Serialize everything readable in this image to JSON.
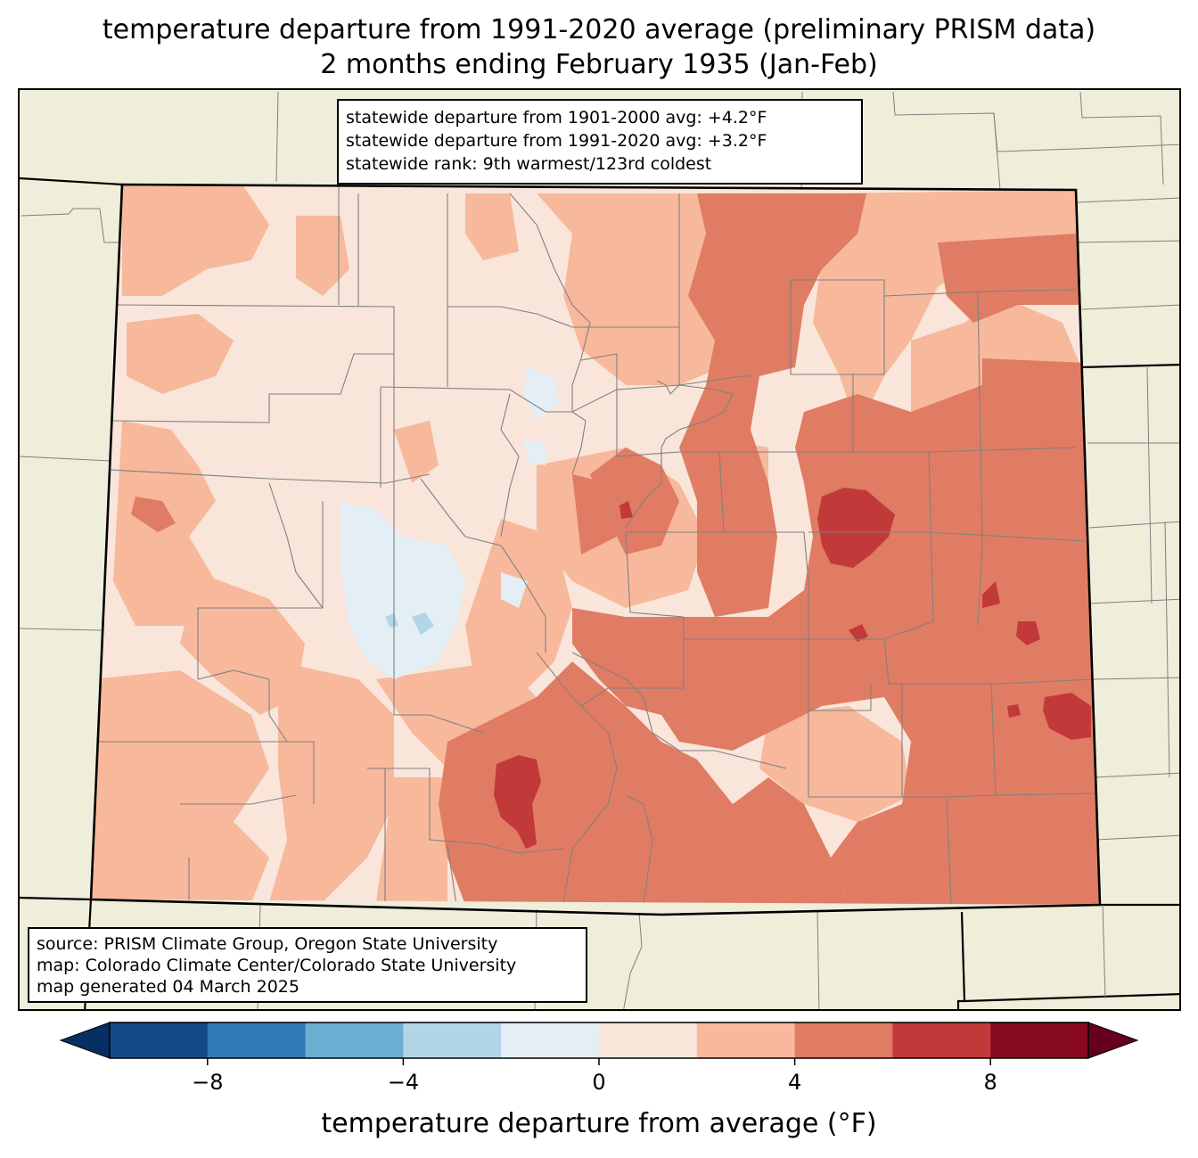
{
  "title": {
    "line1": "temperature departure from 1991-2020 average (preliminary PRISM data)",
    "line2": "2 months ending February 1935 (Jan-Feb)"
  },
  "stats_box": {
    "line1": "statewide departure from 1901-2000 avg: +4.2°F",
    "line2": "statewide departure from 1991-2020 avg: +3.2°F",
    "line3": "statewide rank: 9th warmest/123rd coldest"
  },
  "source_box": {
    "line1": "source: PRISM Climate Group, Oregon State University",
    "line2": "map: Colorado Climate Center/Colorado State University",
    "line3": "map generated 04 March 2025"
  },
  "colorbar": {
    "label": "temperature departure from average (°F)",
    "bounds": [
      -10,
      -8,
      -6,
      -4,
      -2,
      0,
      2,
      4,
      6,
      8,
      10
    ],
    "colors": [
      "#134b87",
      "#2f7bb7",
      "#6aafd1",
      "#b2d6e8",
      "#e4eef5",
      "#f9e5da",
      "#f7b89c",
      "#e07c63",
      "#c2393a",
      "#880a22"
    ],
    "under_color": "#053061",
    "over_color": "#67001f",
    "ticks": [
      -8,
      -4,
      0,
      4,
      8
    ],
    "tick_labels": [
      "−8",
      "−4",
      "0",
      "4",
      "8"
    ]
  },
  "map": {
    "background_color": "#efeedb",
    "county_line_color": "#808080",
    "state_line_color": "#000000"
  }
}
